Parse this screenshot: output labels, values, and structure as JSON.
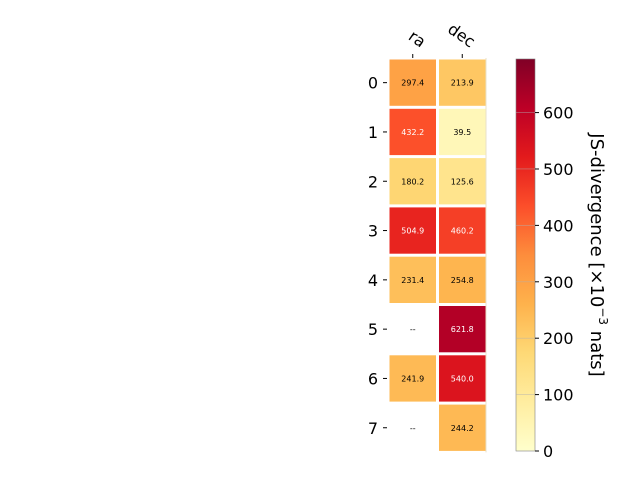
{
  "chart_data": {
    "type": "heatmap",
    "columns": [
      "ra",
      "dec"
    ],
    "rows": [
      "0",
      "1",
      "2",
      "3",
      "4",
      "5",
      "6",
      "7"
    ],
    "values": [
      [
        297.4,
        213.9
      ],
      [
        432.2,
        39.5
      ],
      [
        180.2,
        125.6
      ],
      [
        504.9,
        460.2
      ],
      [
        231.4,
        254.8
      ],
      [
        null,
        621.8
      ],
      [
        241.9,
        540.0
      ],
      [
        null,
        244.2
      ]
    ],
    "cell_labels": [
      [
        "297.4",
        "213.9"
      ],
      [
        "432.2",
        "39.5"
      ],
      [
        "180.2",
        "125.6"
      ],
      [
        "504.9",
        "460.2"
      ],
      [
        "231.4",
        "254.8"
      ],
      [
        "--",
        "621.8"
      ],
      [
        "241.9",
        "540.0"
      ],
      [
        "--",
        "244.2"
      ]
    ],
    "colormap": "YlOrRd",
    "colorbar": {
      "range": [
        0,
        695
      ],
      "ticks": [
        0,
        100,
        200,
        300,
        400,
        500,
        600
      ],
      "tick_labels": [
        "0",
        "100",
        "200",
        "300",
        "400",
        "500",
        "600"
      ],
      "label_main": "JS-divergence [×10",
      "label_exp": "−3",
      "label_unit": " nats]"
    }
  }
}
